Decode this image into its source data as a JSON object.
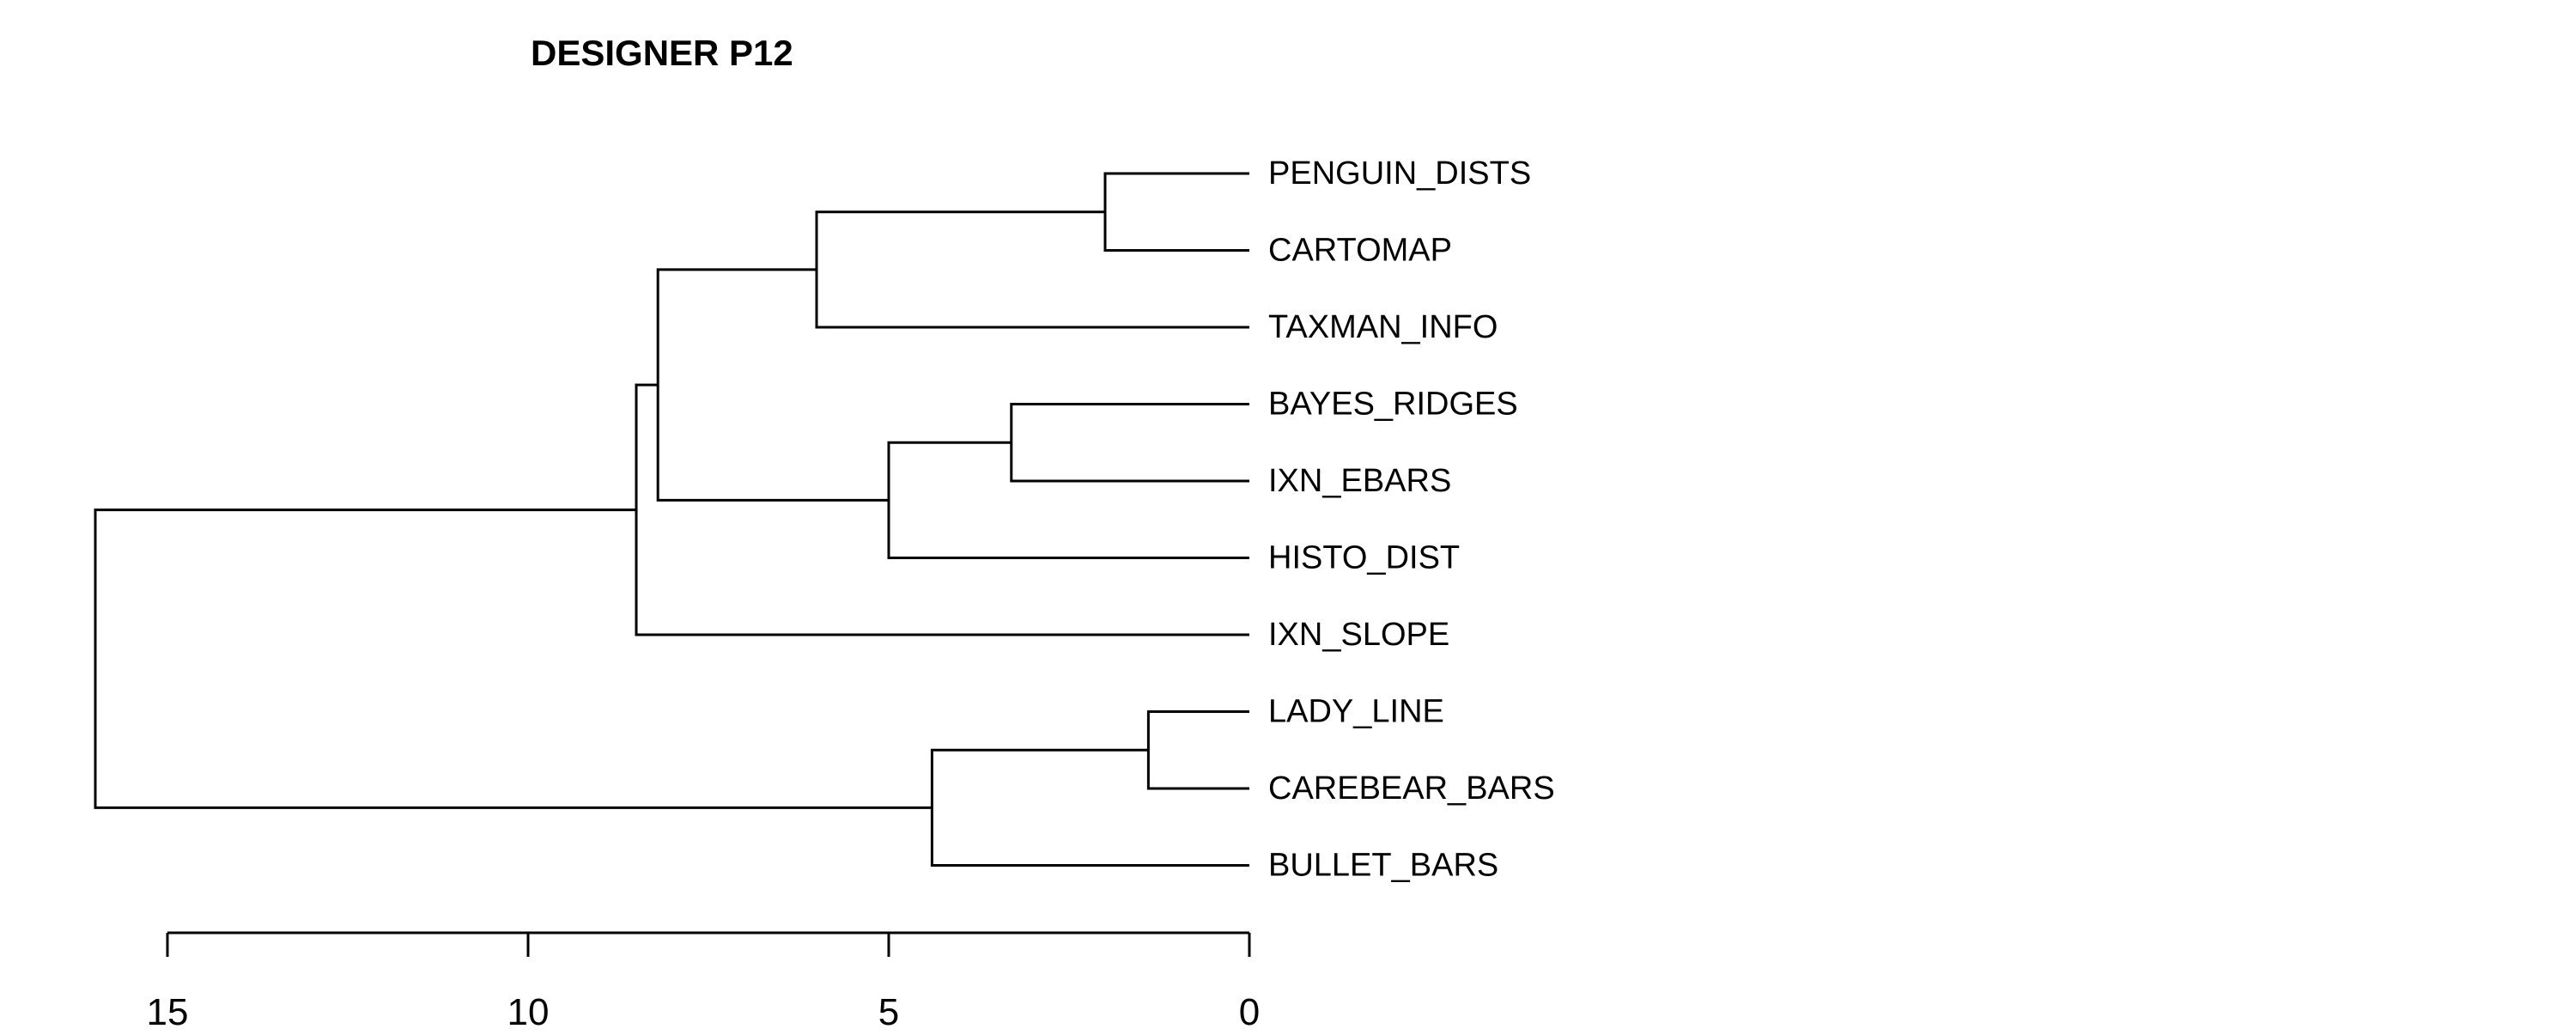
{
  "title": "DESIGNER P12",
  "colors": {
    "background": "#ffffff",
    "ink": "#000000"
  },
  "dendrogram": {
    "orientation": "horizontal",
    "leaves": [
      "PENGUIN_DISTS",
      "CARTOMAP",
      "TAXMAN_INFO",
      "BAYES_RIDGES",
      "IXN_EBARS",
      "HISTO_DIST",
      "IXN_SLOPE",
      "LADY_LINE",
      "CAREBEAR_BARS",
      "BULLET_BARS"
    ],
    "merges": [
      {
        "id": "m1",
        "children": [
          "PENGUIN_DISTS",
          "CARTOMAP"
        ],
        "height": 2.0
      },
      {
        "id": "m2",
        "children": [
          "m1",
          "TAXMAN_INFO"
        ],
        "height": 6.0
      },
      {
        "id": "m3",
        "children": [
          "BAYES_RIDGES",
          "IXN_EBARS"
        ],
        "height": 3.3
      },
      {
        "id": "m4",
        "children": [
          "m3",
          "HISTO_DIST"
        ],
        "height": 5.0
      },
      {
        "id": "m5",
        "children": [
          "m2",
          "m4"
        ],
        "height": 8.2
      },
      {
        "id": "m6",
        "children": [
          "m5",
          "IXN_SLOPE"
        ],
        "height": 8.5
      },
      {
        "id": "m7",
        "children": [
          "LADY_LINE",
          "CAREBEAR_BARS"
        ],
        "height": 1.4
      },
      {
        "id": "m8",
        "children": [
          "m7",
          "BULLET_BARS"
        ],
        "height": 4.4
      },
      {
        "id": "m9",
        "children": [
          "m6",
          "m8"
        ],
        "height": 16.0
      }
    ]
  },
  "axis": {
    "range": [
      15,
      0
    ],
    "ticks": [
      {
        "value": 15,
        "label": "15"
      },
      {
        "value": 10,
        "label": "10"
      },
      {
        "value": 5,
        "label": "5"
      },
      {
        "value": 0,
        "label": "0"
      }
    ]
  }
}
